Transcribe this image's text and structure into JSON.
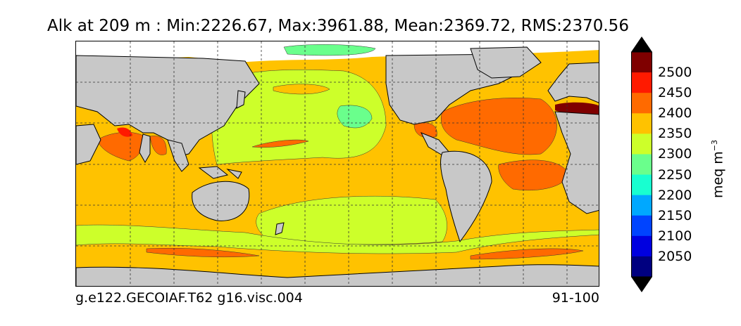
{
  "title": "Alk at 209 m : Min:2226.67, Max:3961.88, Mean:2369.72, RMS:2370.56",
  "caption_left": "g.e122.GECOIAF.T62 g16.visc.004",
  "caption_right": "91-100",
  "colorbar": {
    "unit_base": "meq m",
    "unit_exp": "−3",
    "levels": [
      "2500",
      "2450",
      "2400",
      "2350",
      "2300",
      "2250",
      "2200",
      "2150",
      "2100",
      "2050"
    ],
    "colors": [
      "#7f0000",
      "#ff1a00",
      "#ff6a00",
      "#ffc200",
      "#cdff2a",
      "#6aff8c",
      "#18ffd0",
      "#00a8ff",
      "#0044ff",
      "#0000e0",
      "#000080"
    ],
    "upper_arrow_color": "#000000",
    "lower_arrow_color": "#000000"
  },
  "map": {
    "land_color": "#c8c8c8",
    "ocean_default_color": "#ffc200",
    "gridlines": "dashed"
  }
}
